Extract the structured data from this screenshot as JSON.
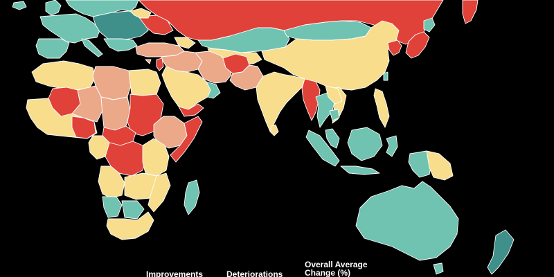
{
  "colors": {
    "background": "#000000",
    "border": "#ffffff",
    "strong_deterioration": "#e04138",
    "moderate_deterioration": "#eba98a",
    "little_change": "#f7dd8c",
    "improvement": "#6fc3b0",
    "strong_improvement": "#3f8f8a"
  },
  "legend": {
    "improvements": "Improvements",
    "deteriorations": "Deteriorations",
    "overall_average_change": "Overall Average Change (%)"
  }
}
